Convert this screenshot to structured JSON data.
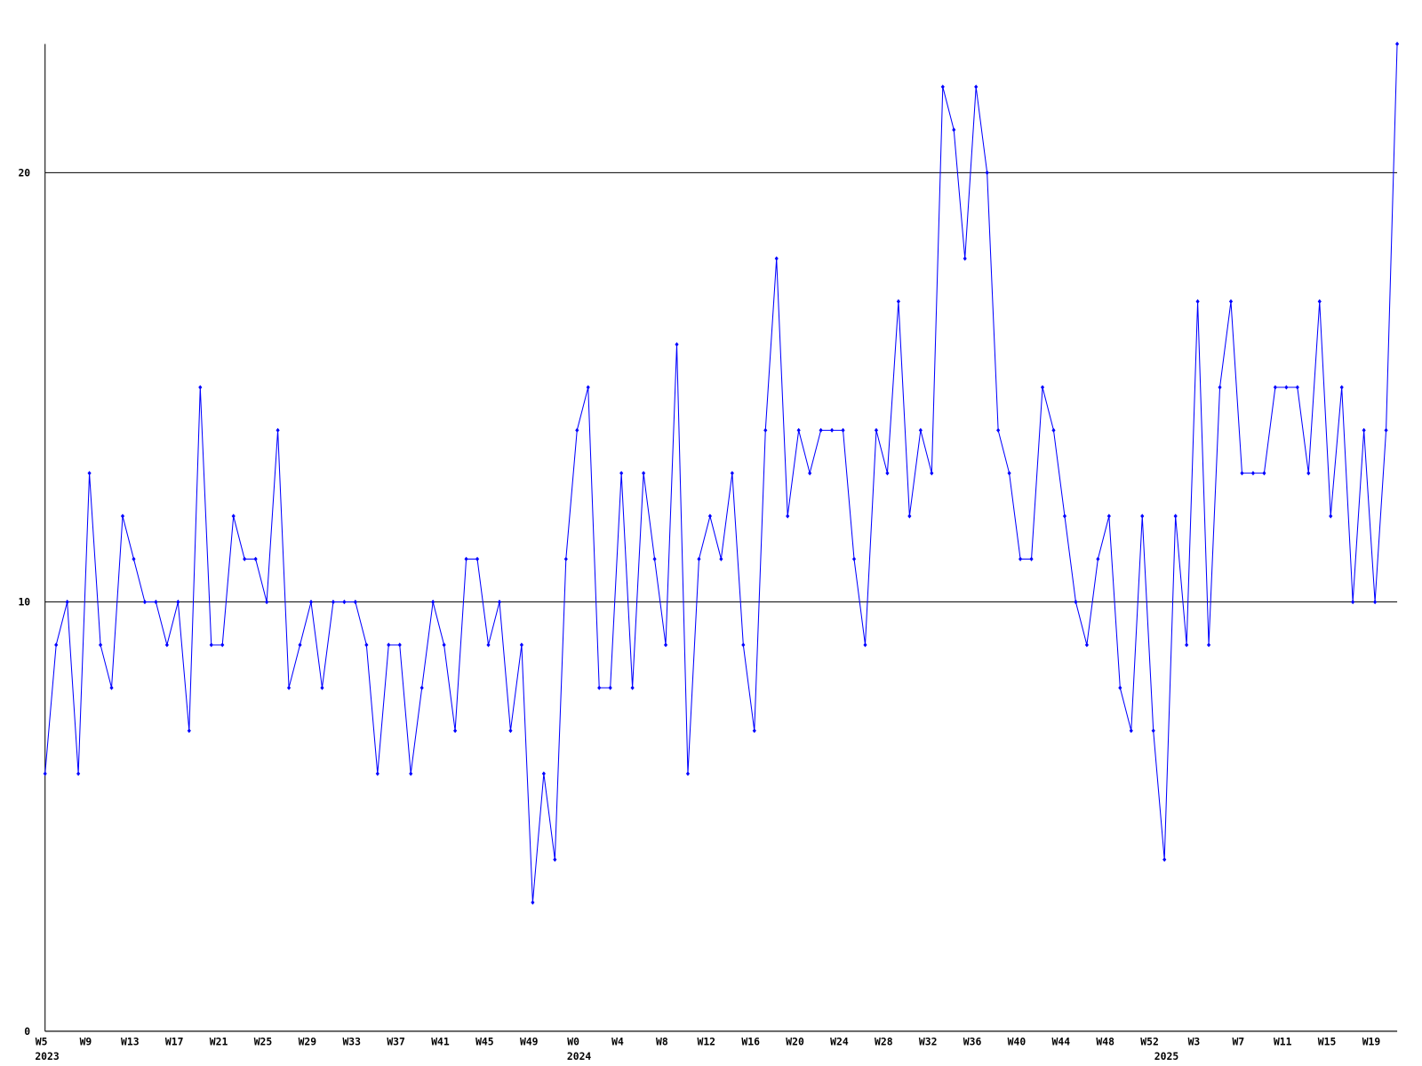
{
  "chart_data": {
    "type": "line",
    "categories": [
      "W5",
      null,
      null,
      null,
      "W9",
      null,
      null,
      null,
      "W13",
      null,
      null,
      null,
      "W17",
      null,
      null,
      null,
      "W21",
      null,
      null,
      null,
      "W25",
      null,
      null,
      null,
      "W29",
      null,
      null,
      null,
      "W33",
      null,
      null,
      null,
      "W37",
      null,
      null,
      null,
      "W41",
      null,
      null,
      null,
      "W45",
      null,
      null,
      null,
      "W49",
      null,
      null,
      null,
      "W0",
      null,
      null,
      null,
      "W4",
      null,
      null,
      null,
      "W8",
      null,
      null,
      null,
      "W12",
      null,
      null,
      null,
      "W16",
      null,
      null,
      null,
      "W20",
      null,
      null,
      null,
      "W24",
      null,
      null,
      null,
      "W28",
      null,
      null,
      null,
      "W32",
      null,
      null,
      null,
      "W36",
      null,
      null,
      null,
      "W40",
      null,
      null,
      null,
      "W44",
      null,
      null,
      null,
      "W48",
      null,
      null,
      null,
      "W52",
      null,
      null,
      null,
      "W3",
      null,
      null,
      null,
      "W7",
      null,
      null,
      null,
      "W11",
      null,
      null,
      null,
      "W15",
      null,
      null,
      null,
      "W19",
      null,
      null
    ],
    "categories2": [
      "2023",
      null,
      null,
      null,
      null,
      null,
      null,
      null,
      null,
      null,
      null,
      null,
      null,
      null,
      null,
      null,
      null,
      null,
      null,
      null,
      null,
      null,
      null,
      null,
      null,
      null,
      null,
      null,
      null,
      null,
      null,
      null,
      null,
      null,
      null,
      null,
      null,
      null,
      null,
      null,
      null,
      null,
      null,
      null,
      null,
      null,
      null,
      null,
      "2024",
      null,
      null,
      null,
      null,
      null,
      null,
      null,
      null,
      null,
      null,
      null,
      null,
      null,
      null,
      null,
      null,
      null,
      null,
      null,
      null,
      null,
      null,
      null,
      null,
      null,
      null,
      null,
      null,
      null,
      null,
      null,
      null,
      null,
      null,
      null,
      null,
      null,
      null,
      null,
      null,
      null,
      null,
      null,
      null,
      null,
      null,
      null,
      null,
      null,
      null,
      null,
      null,
      "2025",
      null,
      null,
      null,
      null,
      null,
      null,
      null,
      null,
      null,
      null,
      null,
      null,
      null,
      null,
      null,
      null,
      null,
      null,
      null,
      null,
      null
    ],
    "series": [
      {
        "color": "#0000ff",
        "values": [
          6,
          9,
          10,
          6,
          13,
          9,
          8,
          12,
          11,
          10,
          10,
          9,
          10,
          7,
          15,
          9,
          9,
          12,
          11,
          11,
          10,
          14,
          8,
          9,
          10,
          8,
          10,
          10,
          10,
          9,
          6,
          9,
          9,
          6,
          8,
          10,
          9,
          7,
          11,
          11,
          9,
          10,
          7,
          9,
          3,
          6,
          4,
          11,
          14,
          15,
          8,
          8,
          13,
          8,
          13,
          11,
          9,
          16,
          6,
          11,
          12,
          11,
          13,
          9,
          7,
          14,
          18,
          12,
          14,
          13,
          14,
          14,
          14,
          11,
          9,
          14,
          13,
          17,
          12,
          14,
          13,
          22,
          21,
          18,
          22,
          20,
          14,
          13,
          11,
          11,
          15,
          14,
          12,
          10,
          9,
          11,
          12,
          8,
          7,
          12,
          7,
          4,
          12,
          9,
          17,
          9,
          15,
          17,
          13,
          13,
          13,
          15,
          15,
          15,
          13,
          17,
          12,
          15,
          10,
          14,
          10,
          14,
          23
        ]
      }
    ],
    "ylim": [
      0,
      23
    ],
    "yticks": [
      0,
      10,
      20
    ],
    "grid": true
  }
}
